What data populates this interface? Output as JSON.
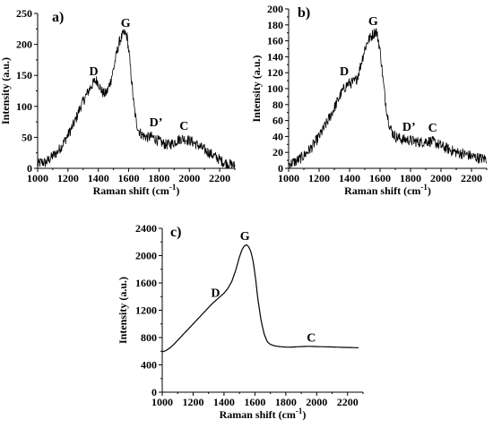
{
  "chart_data": [
    {
      "type": "line",
      "panel_label": "a)",
      "xlabel": "Raman shift (cm",
      "xlabel_sup": "-1",
      "xlabel_close": ")",
      "ylabel": "Intensity (a.u.)",
      "xlim": [
        1000,
        2300
      ],
      "ylim": [
        0,
        250
      ],
      "xticks": [
        1000,
        1200,
        1400,
        1600,
        1800,
        2000,
        2200
      ],
      "yticks": [
        0,
        50,
        100,
        150,
        200,
        250
      ],
      "series": [
        {
          "x": [
            1000,
            1025,
            1050,
            1075,
            1100,
            1125,
            1150,
            1175,
            1200,
            1225,
            1250,
            1275,
            1300,
            1325,
            1350,
            1375,
            1390,
            1400,
            1415,
            1430,
            1445,
            1460,
            1480,
            1500,
            1520,
            1540,
            1560,
            1575,
            1590,
            1605,
            1620,
            1635,
            1650,
            1665,
            1680,
            1700,
            1725,
            1750,
            1775,
            1800,
            1825,
            1850,
            1875,
            1900,
            1925,
            1950,
            1975,
            2000,
            2025,
            2050,
            2075,
            2100,
            2125,
            2150,
            2175,
            2200,
            2225,
            2250,
            2275,
            2300
          ],
          "y": [
            6,
            10,
            9,
            14,
            20,
            25,
            33,
            43,
            54,
            65,
            78,
            95,
            108,
            120,
            132,
            140,
            142,
            138,
            128,
            122,
            120,
            125,
            140,
            160,
            185,
            205,
            215,
            218,
            212,
            180,
            140,
            100,
            75,
            62,
            56,
            52,
            50,
            51,
            48,
            44,
            40,
            38,
            39,
            42,
            46,
            48,
            47,
            45,
            42,
            38,
            34,
            30,
            26,
            22,
            18,
            14,
            10,
            8,
            6,
            4
          ]
        }
      ],
      "annotations": [
        {
          "text": "D",
          "x": 1370,
          "y": 150
        },
        {
          "text": "G",
          "x": 1580,
          "y": 228
        },
        {
          "text": "D’",
          "x": 1780,
          "y": 68
        },
        {
          "text": "C",
          "x": 1965,
          "y": 62
        }
      ]
    },
    {
      "type": "line",
      "panel_label": "b)",
      "xlabel": "Raman shift (cm",
      "xlabel_sup": "-1",
      "xlabel_close": ")",
      "ylabel": "Intensity (a.u.)",
      "xlim": [
        1000,
        2300
      ],
      "ylim": [
        0,
        200
      ],
      "xticks": [
        1000,
        1200,
        1400,
        1600,
        1800,
        2000,
        2200
      ],
      "yticks": [
        0,
        20,
        40,
        60,
        80,
        100,
        120,
        140,
        160,
        180,
        200
      ],
      "series": [
        {
          "x": [
            1000,
            1025,
            1050,
            1075,
            1100,
            1125,
            1150,
            1175,
            1200,
            1225,
            1250,
            1275,
            1300,
            1325,
            1350,
            1375,
            1390,
            1400,
            1415,
            1430,
            1445,
            1460,
            1480,
            1500,
            1520,
            1540,
            1560,
            1575,
            1590,
            1605,
            1620,
            1635,
            1650,
            1665,
            1680,
            1700,
            1725,
            1750,
            1775,
            1800,
            1825,
            1850,
            1875,
            1900,
            1925,
            1950,
            1975,
            2000,
            2025,
            2050,
            2075,
            2100,
            2125,
            2150,
            2175,
            2200,
            2225,
            2250,
            2275,
            2300
          ],
          "y": [
            5,
            7,
            9,
            12,
            16,
            21,
            26,
            33,
            40,
            48,
            57,
            66,
            76,
            86,
            96,
            103,
            106,
            107,
            107,
            108,
            112,
            120,
            135,
            150,
            160,
            165,
            170,
            172,
            160,
            140,
            110,
            85,
            65,
            52,
            45,
            40,
            38,
            36,
            36,
            35,
            34,
            33,
            33,
            34,
            34,
            33,
            31,
            28,
            26,
            24,
            22,
            20,
            19,
            18,
            17,
            15,
            14,
            13,
            12,
            12
          ]
        }
      ],
      "annotations": [
        {
          "text": "D",
          "x": 1365,
          "y": 117
        },
        {
          "text": "G",
          "x": 1555,
          "y": 180
        },
        {
          "text": "D’",
          "x": 1790,
          "y": 47
        },
        {
          "text": "C",
          "x": 1945,
          "y": 46
        }
      ]
    },
    {
      "type": "line",
      "panel_label": "c)",
      "xlabel": "Raman shift (cm",
      "xlabel_sup": "-1",
      "xlabel_close": ")",
      "ylabel": "Intensity (a.u.)",
      "xlim": [
        1000,
        2300
      ],
      "ylim": [
        0,
        2400
      ],
      "xticks": [
        1000,
        1200,
        1400,
        1600,
        1800,
        2000,
        2200
      ],
      "yticks": [
        0,
        400,
        800,
        1200,
        1600,
        2000,
        2400
      ],
      "series": [
        {
          "x": [
            1000,
            1025,
            1050,
            1075,
            1100,
            1125,
            1150,
            1175,
            1200,
            1225,
            1250,
            1275,
            1300,
            1325,
            1350,
            1375,
            1400,
            1425,
            1450,
            1475,
            1500,
            1515,
            1530,
            1545,
            1560,
            1575,
            1590,
            1605,
            1620,
            1640,
            1660,
            1680,
            1700,
            1725,
            1750,
            1775,
            1800,
            1825,
            1850,
            1875,
            1900,
            1925,
            1950,
            1975,
            2000,
            2025,
            2050,
            2075,
            2100,
            2125,
            2150,
            2175,
            2200,
            2225,
            2250,
            2270
          ],
          "y": [
            590,
            610,
            650,
            700,
            760,
            820,
            880,
            940,
            1000,
            1060,
            1120,
            1180,
            1240,
            1300,
            1350,
            1400,
            1450,
            1520,
            1620,
            1780,
            1980,
            2080,
            2140,
            2160,
            2130,
            2050,
            1900,
            1650,
            1350,
            1050,
            850,
            740,
            700,
            680,
            670,
            665,
            660,
            660,
            662,
            665,
            668,
            670,
            672,
            670,
            668,
            666,
            665,
            664,
            662,
            660,
            658,
            656,
            655,
            654,
            652,
            650
          ]
        }
      ],
      "annotations": [
        {
          "text": "D",
          "x": 1345,
          "y": 1400
        },
        {
          "text": "G",
          "x": 1535,
          "y": 2230
        },
        {
          "text": "C",
          "x": 1965,
          "y": 740
        }
      ]
    }
  ]
}
